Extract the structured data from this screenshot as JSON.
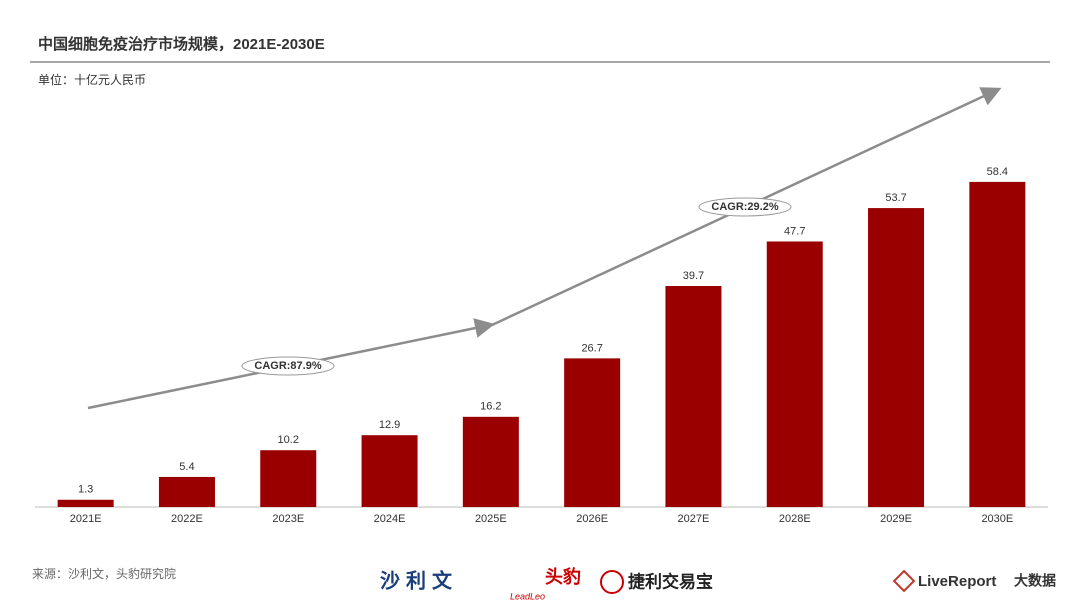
{
  "chart_data": {
    "type": "bar",
    "title": "中国细胞免疫治疗市场规模，2021E-2030E",
    "subtitle": "单位：十亿元人民币",
    "categories": [
      "2021E",
      "2022E",
      "2023E",
      "2024E",
      "2025E",
      "2026E",
      "2027E",
      "2028E",
      "2029E",
      "2030E"
    ],
    "values": [
      1.3,
      5.4,
      10.2,
      12.9,
      16.2,
      26.7,
      39.7,
      47.7,
      53.7,
      58.4
    ],
    "color": "#9b0000",
    "ylim": [
      0,
      60
    ],
    "annotations": [
      "CAGR:87.9%",
      "CAGR:29.2%"
    ]
  },
  "footer": {
    "source": "来源：沙利文，头豹研究院",
    "logos": [
      "沙利文",
      "头豹",
      "LeadLeo",
      "捷利交易宝",
      "LiveReport",
      "大数据"
    ]
  }
}
